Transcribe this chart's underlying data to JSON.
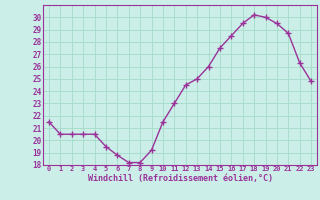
{
  "x": [
    0,
    1,
    2,
    3,
    4,
    5,
    6,
    7,
    8,
    9,
    10,
    11,
    12,
    13,
    14,
    15,
    16,
    17,
    18,
    19,
    20,
    21,
    22,
    23
  ],
  "y": [
    21.5,
    20.5,
    20.5,
    20.5,
    20.5,
    19.5,
    18.8,
    18.2,
    18.2,
    19.2,
    21.5,
    23.0,
    24.5,
    25.0,
    26.0,
    27.5,
    28.5,
    29.5,
    30.2,
    30.0,
    29.5,
    28.7,
    26.3,
    24.8
  ],
  "line_color": "#993399",
  "marker": "+",
  "bg_color": "#cceee8",
  "grid_color": "#aaddcc",
  "xlabel": "Windchill (Refroidissement éolien,°C)",
  "xlabel_color": "#993399",
  "tick_color": "#993399",
  "ylim": [
    18,
    31
  ],
  "yticks": [
    18,
    19,
    20,
    21,
    22,
    23,
    24,
    25,
    26,
    27,
    28,
    29,
    30
  ],
  "xticks": [
    0,
    1,
    2,
    3,
    4,
    5,
    6,
    7,
    8,
    9,
    10,
    11,
    12,
    13,
    14,
    15,
    16,
    17,
    18,
    19,
    20,
    21,
    22,
    23
  ],
  "xlim": [
    -0.5,
    23.5
  ]
}
